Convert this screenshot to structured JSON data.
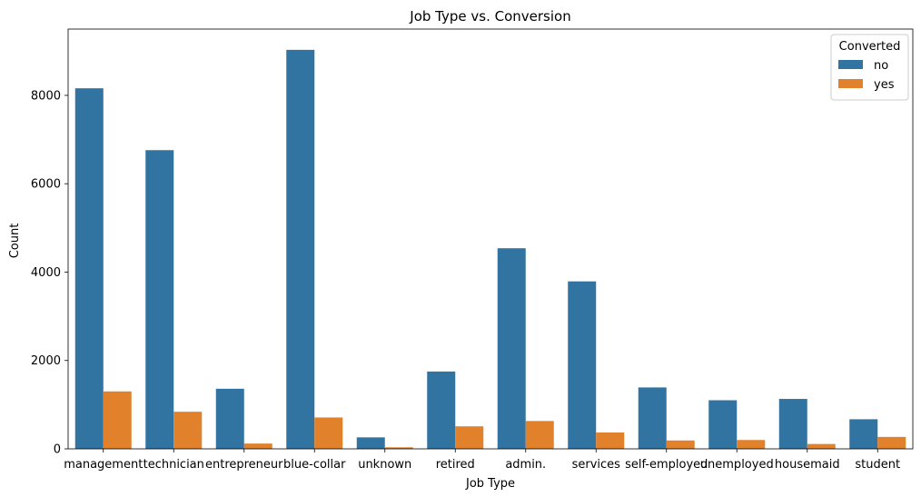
{
  "chart_data": {
    "type": "bar",
    "title": "Job Type vs. Conversion",
    "xlabel": "Job Type",
    "ylabel": "Count",
    "ylim": [
      0,
      9500
    ],
    "yticks": [
      0,
      2000,
      4000,
      6000,
      8000
    ],
    "categories": [
      "management",
      "technician",
      "entrepreneur",
      "blue-collar",
      "unknown",
      "retired",
      "admin.",
      "services",
      "self-employed",
      "unemployed",
      "housemaid",
      "student"
    ],
    "legend": {
      "title": "Converted",
      "placement": "top-right"
    },
    "series": [
      {
        "name": "no",
        "color": "#3274a1",
        "values": [
          8160,
          6760,
          1360,
          9030,
          260,
          1750,
          4540,
          3790,
          1390,
          1100,
          1130,
          670
        ]
      },
      {
        "name": "yes",
        "color": "#e1812c",
        "values": [
          1300,
          840,
          120,
          710,
          35,
          510,
          630,
          370,
          190,
          200,
          110,
          270
        ]
      }
    ],
    "grid": false
  }
}
